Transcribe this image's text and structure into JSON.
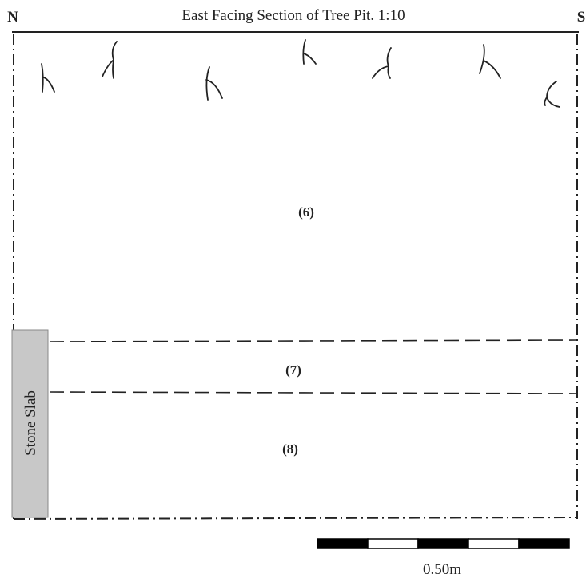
{
  "header": {
    "title": "East Facing Section of Tree Pit. 1:10",
    "left": "N",
    "right": "S"
  },
  "layers": [
    {
      "label": "(6)"
    },
    {
      "label": "(7)"
    },
    {
      "label": "(8)"
    }
  ],
  "feature": {
    "label": "Stone Slab"
  },
  "scale": {
    "label": "0.50m"
  }
}
